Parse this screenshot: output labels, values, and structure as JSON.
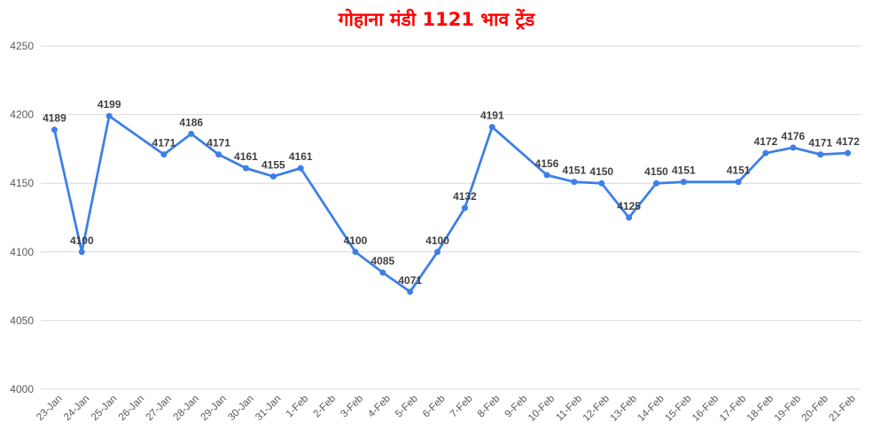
{
  "colors": {
    "title": "#ff0000",
    "line": "#3d7fe6",
    "grid": "#d9d9d9",
    "text": "#595959"
  },
  "chart_data": {
    "type": "line",
    "title": "गोहाना मंडी 1121 भाव ट्रेंड",
    "grid": true,
    "legend": "none",
    "ylim": [
      4000,
      4250
    ],
    "yticks": [
      4000,
      4050,
      4100,
      4150,
      4200,
      4250
    ],
    "categories": [
      "23-Jan",
      "24-Jan",
      "25-Jan",
      "26-Jan",
      "27-Jan",
      "28-Jan",
      "29-Jan",
      "30-Jan",
      "31-Jan",
      "1-Feb",
      "2-Feb",
      "3-Feb",
      "4-Feb",
      "5-Feb",
      "6-Feb",
      "7-Feb",
      "8-Feb",
      "9-Feb",
      "10-Feb",
      "11-Feb",
      "12-Feb",
      "13-Feb",
      "14-Feb",
      "15-Feb",
      "16-Feb",
      "17-Feb",
      "18-Feb",
      "19-Feb",
      "20-Feb",
      "21-Feb"
    ],
    "series": [
      {
        "values": [
          4189,
          4100,
          4199,
          null,
          4171,
          4186,
          4171,
          4161,
          4155,
          4161,
          null,
          4100,
          4085,
          4071,
          4100,
          4132,
          4191,
          null,
          4156,
          4151,
          4150,
          4125,
          4150,
          4151,
          null,
          4151,
          4172,
          4176,
          4171,
          4172
        ]
      }
    ]
  }
}
